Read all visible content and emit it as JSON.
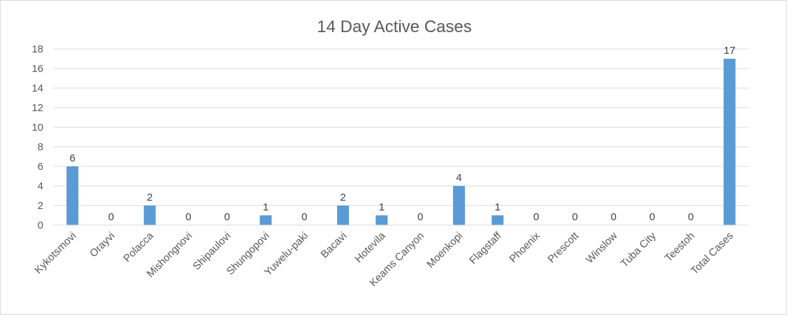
{
  "chart_data": {
    "type": "bar",
    "title": "14 Day Active Cases",
    "xlabel": "",
    "ylabel": "",
    "ylim": [
      0,
      18
    ],
    "yticks": [
      0,
      2,
      4,
      6,
      8,
      10,
      12,
      14,
      16,
      18
    ],
    "grid": true,
    "legend": "none",
    "bar_color": "#5b9bd5",
    "categories": [
      "Kykotsmovi",
      "Orayvi",
      "Polacca",
      "Mishongnovi",
      "Shipaulovi",
      "Shungopovi",
      "Yuwelu-paki",
      "Bacavi",
      "Hotevila",
      "Keams Canyon",
      "Moenkopi",
      "Flagstaff",
      "Phoenix",
      "Prescott",
      "Winslow",
      "Tuba City",
      "Teestoh",
      "Total Cases"
    ],
    "values": [
      6,
      0,
      2,
      0,
      0,
      1,
      0,
      2,
      1,
      0,
      4,
      1,
      0,
      0,
      0,
      0,
      0,
      17
    ]
  }
}
